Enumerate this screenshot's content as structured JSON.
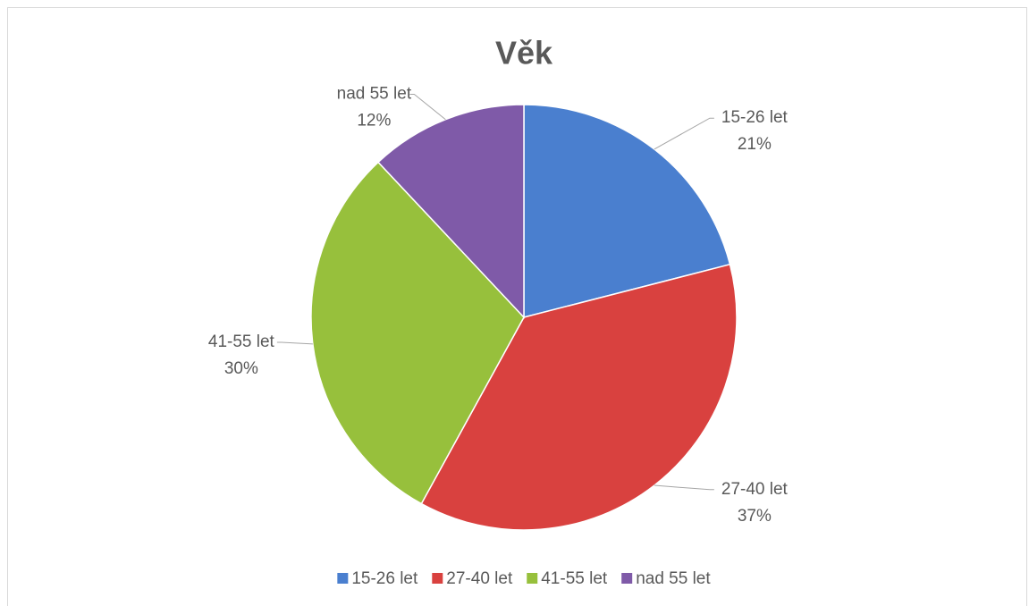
{
  "chart_data": {
    "type": "pie",
    "title": "Věk",
    "categories": [
      "15-26 let",
      "27-40 let",
      "41-55 let",
      "nad 55 let"
    ],
    "values": [
      21,
      37,
      30,
      12
    ],
    "value_labels": [
      "21%",
      "37%",
      "30%",
      "12%"
    ],
    "colors": [
      "#4a7fcf",
      "#d9413f",
      "#97c03c",
      "#7f5aa8"
    ],
    "legend": "bottom"
  }
}
